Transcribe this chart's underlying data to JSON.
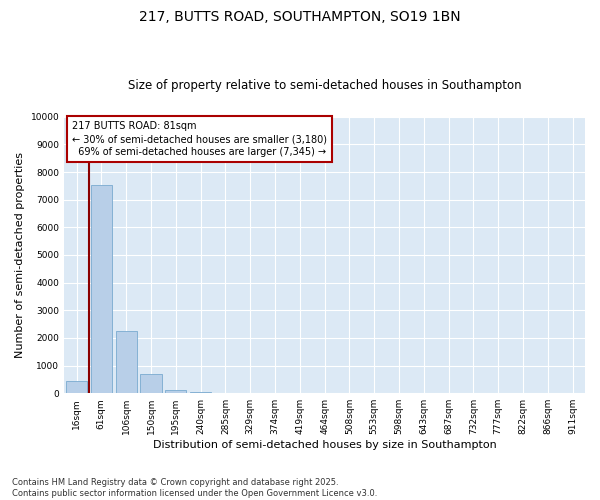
{
  "title": "217, BUTTS ROAD, SOUTHAMPTON, SO19 1BN",
  "subtitle": "Size of property relative to semi-detached houses in Southampton",
  "xlabel": "Distribution of semi-detached houses by size in Southampton",
  "ylabel": "Number of semi-detached properties",
  "categories": [
    "16sqm",
    "61sqm",
    "106sqm",
    "150sqm",
    "195sqm",
    "240sqm",
    "285sqm",
    "329sqm",
    "374sqm",
    "419sqm",
    "464sqm",
    "508sqm",
    "553sqm",
    "598sqm",
    "643sqm",
    "687sqm",
    "732sqm",
    "777sqm",
    "822sqm",
    "866sqm",
    "911sqm"
  ],
  "values": [
    430,
    7550,
    2250,
    700,
    130,
    50,
    0,
    0,
    0,
    0,
    0,
    0,
    0,
    0,
    0,
    0,
    0,
    0,
    0,
    0,
    0
  ],
  "bar_color": "#b8cfe8",
  "bar_edge_color": "#7aaad0",
  "vline_x": 0.5,
  "vline_color": "#8b0000",
  "annotation_title": "217 BUTTS ROAD: 81sqm",
  "annotation_line1": "← 30% of semi-detached houses are smaller (3,180)",
  "annotation_line2": "  69% of semi-detached houses are larger (7,345) →",
  "annotation_box_color": "#ffffff",
  "annotation_box_edge": "#aa0000",
  "ylim": [
    0,
    10000
  ],
  "yticks": [
    0,
    1000,
    2000,
    3000,
    4000,
    5000,
    6000,
    7000,
    8000,
    9000,
    10000
  ],
  "bg_color": "#dce9f5",
  "footer": "Contains HM Land Registry data © Crown copyright and database right 2025.\nContains public sector information licensed under the Open Government Licence v3.0.",
  "title_fontsize": 10,
  "subtitle_fontsize": 8.5,
  "axis_label_fontsize": 8,
  "tick_fontsize": 6.5,
  "annotation_fontsize": 7,
  "footer_fontsize": 6
}
